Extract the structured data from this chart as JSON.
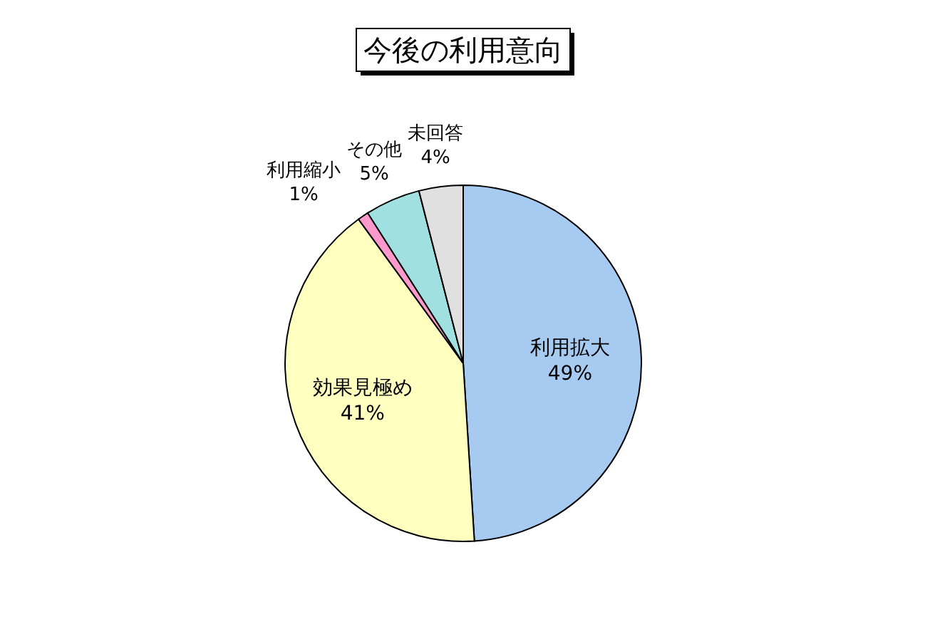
{
  "chart_data": {
    "type": "pie",
    "title": "今後の利用意向",
    "categories": [
      "利用拡大",
      "効果見極め",
      "利用縮小",
      "その他",
      "未回答"
    ],
    "values": [
      49,
      41,
      1,
      5,
      4
    ],
    "colors": [
      "#a6caf0",
      "#ffffc0",
      "#ff99cc",
      "#a0e0e0",
      "#e0e0e0"
    ],
    "value_labels": [
      "49%",
      "41%",
      "1%",
      "5%",
      "4%"
    ]
  }
}
